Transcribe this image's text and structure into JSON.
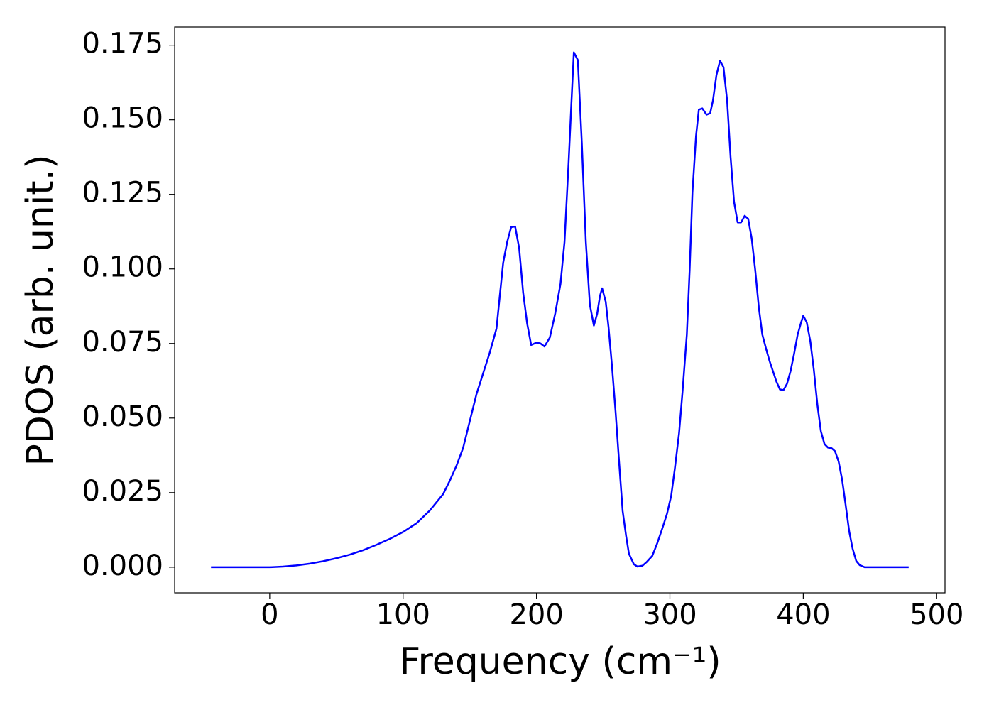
{
  "chart_data": {
    "type": "line",
    "xlabel": "Frequency (cm⁻¹)",
    "ylabel": "PDOS (arb. unit.)",
    "x": [
      -44,
      -20,
      0,
      10,
      20,
      30,
      40,
      50,
      60,
      70,
      80,
      90,
      100,
      110,
      120,
      130,
      135,
      140,
      145,
      150,
      155,
      160,
      165,
      170,
      175,
      178,
      181,
      184,
      187,
      190,
      193,
      196,
      200,
      203,
      206,
      210,
      214,
      218,
      221,
      224,
      226,
      228,
      231,
      234,
      237,
      240,
      243,
      245.5,
      247.6,
      249.2,
      251.9,
      254,
      256.6,
      259.3,
      261.9,
      264.6,
      267.2,
      269.3,
      273,
      275.7,
      279.4,
      282.5,
      286.8,
      290.5,
      294.7,
      297.9,
      301,
      303.7,
      306.9,
      309.5,
      312.7,
      314.8,
      316.9,
      319.6,
      321.7,
      324.3,
      327.5,
      330.2,
      332.3,
      334.9,
      337.6,
      340.2,
      342.9,
      345.5,
      348.1,
      350.8,
      353.4,
      356.1,
      358.7,
      361.4,
      364,
      366.7,
      369.3,
      372,
      374.6,
      377.2,
      379.9,
      382.5,
      385.2,
      387.8,
      390.5,
      393.1,
      395.8,
      398.4,
      400,
      402.6,
      405.3,
      407.9,
      410.6,
      413.2,
      415.9,
      418.5,
      421.2,
      423.8,
      426.5,
      429.1,
      431.7,
      434.4,
      437,
      439.7,
      442.3,
      446,
      479
    ],
    "series": [
      {
        "name": "PDOS",
        "color": "#0000ff",
        "values": [
          0,
          0,
          0,
          0.0002,
          0.0006,
          0.0012,
          0.002,
          0.003,
          0.0042,
          0.0057,
          0.0075,
          0.0095,
          0.0118,
          0.0147,
          0.019,
          0.0245,
          0.029,
          0.034,
          0.04,
          0.049,
          0.058,
          0.065,
          0.072,
          0.08,
          0.102,
          0.109,
          0.114,
          0.1142,
          0.107,
          0.092,
          0.0817,
          0.0745,
          0.0753,
          0.075,
          0.074,
          0.077,
          0.085,
          0.095,
          0.109,
          0.135,
          0.154,
          0.1726,
          0.17,
          0.142,
          0.109,
          0.088,
          0.081,
          0.085,
          0.091,
          0.0935,
          0.089,
          0.0805,
          0.0674,
          0.052,
          0.0354,
          0.0188,
          0.0104,
          0.0045,
          0.001,
          0.0002,
          0.0005,
          0.0017,
          0.0038,
          0.008,
          0.0135,
          0.018,
          0.024,
          0.033,
          0.045,
          0.059,
          0.078,
          0.0995,
          0.1256,
          0.1446,
          0.1534,
          0.1538,
          0.1517,
          0.1522,
          0.1565,
          0.165,
          0.1698,
          0.1676,
          0.1565,
          0.1375,
          0.1225,
          0.1156,
          0.1156,
          0.1178,
          0.1168,
          0.11,
          0.0995,
          0.087,
          0.078,
          0.0734,
          0.0693,
          0.0658,
          0.0622,
          0.0596,
          0.0594,
          0.0615,
          0.0658,
          0.0715,
          0.078,
          0.0821,
          0.0843,
          0.0821,
          0.0757,
          0.0662,
          0.0544,
          0.0456,
          0.0413,
          0.0401,
          0.0399,
          0.0389,
          0.0354,
          0.0294,
          0.0211,
          0.0121,
          0.0062,
          0.0021,
          0.0007,
          0,
          0
        ]
      }
    ],
    "xlim": [
      -71.25,
      506.25
    ],
    "xticks": [
      0,
      100,
      200,
      300,
      400,
      500
    ],
    "ylim": [
      -0.0086,
      0.1811
    ],
    "yticks": [
      {
        "value": 0,
        "label": "0.000"
      },
      {
        "value": 0.025,
        "label": "0.025"
      },
      {
        "value": 0.05,
        "label": "0.050"
      },
      {
        "value": 0.075,
        "label": "0.075"
      },
      {
        "value": 0.1,
        "label": "0.100"
      },
      {
        "value": 0.125,
        "label": "0.125"
      },
      {
        "value": 0.15,
        "label": "0.150"
      },
      {
        "value": 0.175,
        "label": "0.175"
      }
    ],
    "grid": false
  }
}
